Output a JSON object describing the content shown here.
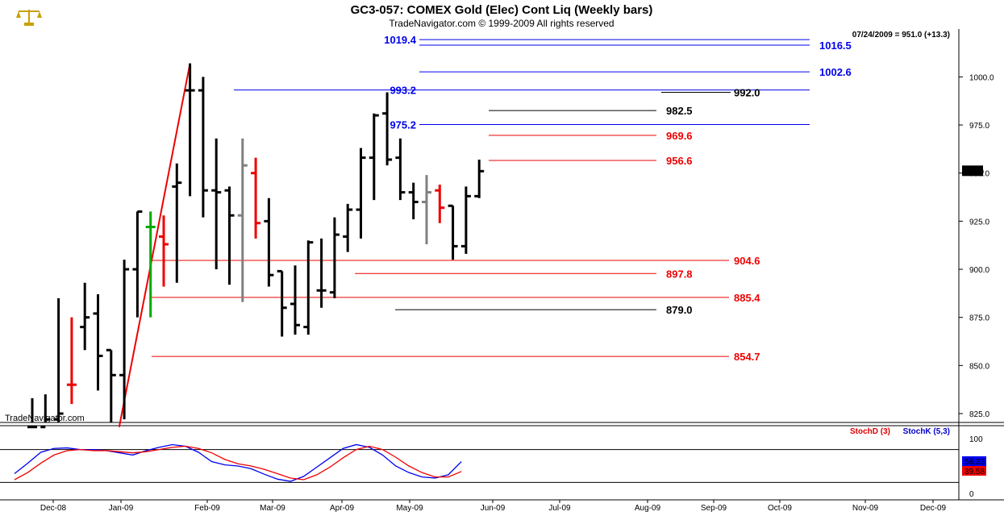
{
  "header": {
    "title": "GC3-057:  COMEX Gold (Elec) Cont Liq  (Weekly bars)",
    "copyright": "TradeNavigator.com © 1999-2009 All rights reserved",
    "readout": "07/24/2009 = 951.0 (+13.3)",
    "watermark": "TradeNavigator.com",
    "last_price_badge": "951.0"
  },
  "indicator_legend": {
    "stochd": "StochD (3)",
    "stochk": "StochK (5,3)"
  },
  "colors": {
    "blue_level": "#0000ee",
    "red_level": "#ee0000",
    "black_level": "#000000",
    "green_marker": "#00aa00",
    "gray_bar": "#808080"
  },
  "chart_data": [
    {
      "type": "ohlc",
      "title": "GC3-057:  COMEX Gold (Elec) Cont Liq  (Weekly bars)",
      "x_tick_labels": [
        "Dec-08",
        "Jan-09",
        "Feb-09",
        "Mar-09",
        "Apr-09",
        "May-09",
        "Jun-09",
        "Jul-09",
        "Aug-09",
        "Sep-09",
        "Oct-09",
        "Nov-09",
        "Dec-09"
      ],
      "y_ticks": [
        825.0,
        850.0,
        875.0,
        900.0,
        925.0,
        950.0,
        975.0,
        1000.0
      ],
      "ylim": [
        820.0,
        1022.0
      ],
      "bars": [
        {
          "x": "Nov-28-08",
          "o": 818,
          "h": 833,
          "l": 815,
          "c": 818,
          "color": "black"
        },
        {
          "x": "Dec-05-08",
          "o": 818,
          "h": 835,
          "l": 815,
          "c": 822,
          "color": "black"
        },
        {
          "x": "Dec-12-08",
          "o": 822,
          "h": 885,
          "l": 818,
          "c": 825,
          "color": "black"
        },
        {
          "x": "Dec-19-08",
          "o": 840,
          "h": 875,
          "l": 830,
          "c": 840,
          "color": "red"
        },
        {
          "x": "Dec-26-08",
          "o": 870,
          "h": 893,
          "l": 858,
          "c": 875,
          "color": "black"
        },
        {
          "x": "Jan-02-09",
          "o": 877,
          "h": 887,
          "l": 837,
          "c": 855,
          "color": "black"
        },
        {
          "x": "Jan-09-09",
          "o": 858,
          "h": 858,
          "l": 815,
          "c": 845,
          "color": "black"
        },
        {
          "x": "Jan-16-09",
          "o": 845,
          "h": 905,
          "l": 822,
          "c": 900,
          "color": "black"
        },
        {
          "x": "Jan-23-09",
          "o": 900,
          "h": 930,
          "l": 875,
          "c": 930,
          "color": "black"
        },
        {
          "x": "Jan-30-09",
          "o": 922,
          "h": 930,
          "l": 875,
          "c": 922,
          "color": "green"
        },
        {
          "x": "Feb-06-09",
          "o": 917,
          "h": 928,
          "l": 891,
          "c": 913,
          "color": "red"
        },
        {
          "x": "Feb-13-09",
          "o": 943,
          "h": 955,
          "l": 893,
          "c": 945,
          "color": "black"
        },
        {
          "x": "Feb-20-09",
          "o": 993,
          "h": 1007,
          "l": 938,
          "c": 993,
          "color": "black"
        },
        {
          "x": "Feb-27-09",
          "o": 993,
          "h": 1000,
          "l": 927,
          "c": 941,
          "color": "black"
        },
        {
          "x": "Mar-06-09",
          "o": 941,
          "h": 968,
          "l": 900,
          "c": 940,
          "color": "black"
        },
        {
          "x": "Mar-13-09",
          "o": 941,
          "h": 943,
          "l": 892,
          "c": 928,
          "color": "black"
        },
        {
          "x": "Mar-20-09",
          "o": 928,
          "h": 968,
          "l": 883,
          "c": 954,
          "color": "gray"
        },
        {
          "x": "Mar-27-09",
          "o": 950,
          "h": 958,
          "l": 916,
          "c": 924,
          "color": "red"
        },
        {
          "x": "Apr-03-09",
          "o": 925,
          "h": 937,
          "l": 891,
          "c": 897,
          "color": "black"
        },
        {
          "x": "Apr-10-09",
          "o": 899,
          "h": 899,
          "l": 865,
          "c": 880,
          "color": "black"
        },
        {
          "x": "Apr-17-09",
          "o": 882,
          "h": 902,
          "l": 866,
          "c": 871,
          "color": "black"
        },
        {
          "x": "Apr-24-09",
          "o": 870,
          "h": 915,
          "l": 866,
          "c": 914,
          "color": "black"
        },
        {
          "x": "May-01-09",
          "o": 889,
          "h": 916,
          "l": 880,
          "c": 889,
          "color": "black"
        },
        {
          "x": "May-08-09",
          "o": 888,
          "h": 927,
          "l": 885,
          "c": 918,
          "color": "black"
        },
        {
          "x": "May-15-09",
          "o": 917,
          "h": 934,
          "l": 909,
          "c": 931,
          "color": "black"
        },
        {
          "x": "May-22-09",
          "o": 931,
          "h": 963,
          "l": 916,
          "c": 958,
          "color": "black"
        },
        {
          "x": "May-29-09",
          "o": 958,
          "h": 981,
          "l": 936,
          "c": 980,
          "color": "black"
        },
        {
          "x": "Jun-05-09",
          "o": 981,
          "h": 992,
          "l": 954,
          "c": 957,
          "color": "black"
        },
        {
          "x": "Jun-12-09",
          "o": 958,
          "h": 968,
          "l": 936,
          "c": 940,
          "color": "black"
        },
        {
          "x": "Jun-19-09",
          "o": 940,
          "h": 945,
          "l": 926,
          "c": 935,
          "color": "black"
        },
        {
          "x": "Jun-26-09",
          "o": 935,
          "h": 949,
          "l": 913,
          "c": 940,
          "color": "gray"
        },
        {
          "x": "Jul-03-09",
          "o": 941,
          "h": 944,
          "l": 924,
          "c": 932,
          "color": "red"
        },
        {
          "x": "Jul-10-09",
          "o": 933,
          "h": 933,
          "l": 905,
          "c": 912,
          "color": "black"
        },
        {
          "x": "Jul-17-09",
          "o": 912,
          "h": 943,
          "l": 908,
          "c": 938,
          "color": "black"
        },
        {
          "x": "Jul-24-09",
          "o": 938,
          "h": 957,
          "l": 937,
          "c": 951,
          "color": "black"
        }
      ],
      "levels": [
        {
          "value": 1019.4,
          "label": "1019.4",
          "color": "blue",
          "label_side": "left"
        },
        {
          "value": 1016.5,
          "label": "1016.5",
          "color": "blue",
          "label_side": "right"
        },
        {
          "value": 1002.6,
          "label": "1002.6",
          "color": "blue",
          "label_side": "right"
        },
        {
          "value": 993.2,
          "label": "993.2",
          "color": "blue",
          "label_side": "left"
        },
        {
          "value": 992.0,
          "label": "992.0",
          "color": "black",
          "label_side": "right"
        },
        {
          "value": 982.5,
          "label": "982.5",
          "color": "black",
          "label_side": "right"
        },
        {
          "value": 975.2,
          "label": "975.2",
          "color": "blue",
          "label_side": "left"
        },
        {
          "value": 969.6,
          "label": "969.6",
          "color": "red",
          "label_side": "right"
        },
        {
          "value": 956.6,
          "label": "956.6",
          "color": "red",
          "label_side": "right"
        },
        {
          "value": 904.6,
          "label": "904.6",
          "color": "red",
          "label_side": "right"
        },
        {
          "value": 897.8,
          "label": "897.8",
          "color": "red",
          "label_side": "right"
        },
        {
          "value": 885.4,
          "label": "885.4",
          "color": "red",
          "label_side": "right"
        },
        {
          "value": 879.0,
          "label": "879.0",
          "color": "black",
          "label_side": "right"
        },
        {
          "value": 854.7,
          "label": "854.7",
          "color": "red",
          "label_side": "right"
        }
      ],
      "trendline": {
        "from": {
          "x": "Jan-09-09",
          "y": 818
        },
        "to": {
          "x": "Feb-20-09",
          "y": 1007
        }
      }
    },
    {
      "type": "line",
      "y_ticks": [
        0,
        100
      ],
      "ylim": [
        -10,
        115
      ],
      "hlines": [
        80,
        20
      ],
      "series": [
        {
          "name": "StochK (5,3)",
          "color": "blue",
          "last": "58.23",
          "values": [
            36,
            55,
            75,
            82,
            83,
            80,
            80,
            78,
            74,
            70,
            78,
            84,
            89,
            86,
            75,
            58,
            52,
            50,
            45,
            35,
            26,
            22,
            31,
            48,
            65,
            82,
            89,
            84,
            70,
            50,
            38,
            30,
            28,
            34,
            58
          ]
        },
        {
          "name": "StochD (3)",
          "color": "red",
          "last": "39.58",
          "values": [
            25,
            38,
            55,
            70,
            78,
            80,
            78,
            78,
            76,
            74,
            76,
            80,
            84,
            86,
            82,
            74,
            62,
            54,
            50,
            44,
            36,
            28,
            25,
            34,
            48,
            65,
            80,
            86,
            80,
            66,
            50,
            38,
            30,
            30,
            40
          ]
        }
      ]
    }
  ]
}
